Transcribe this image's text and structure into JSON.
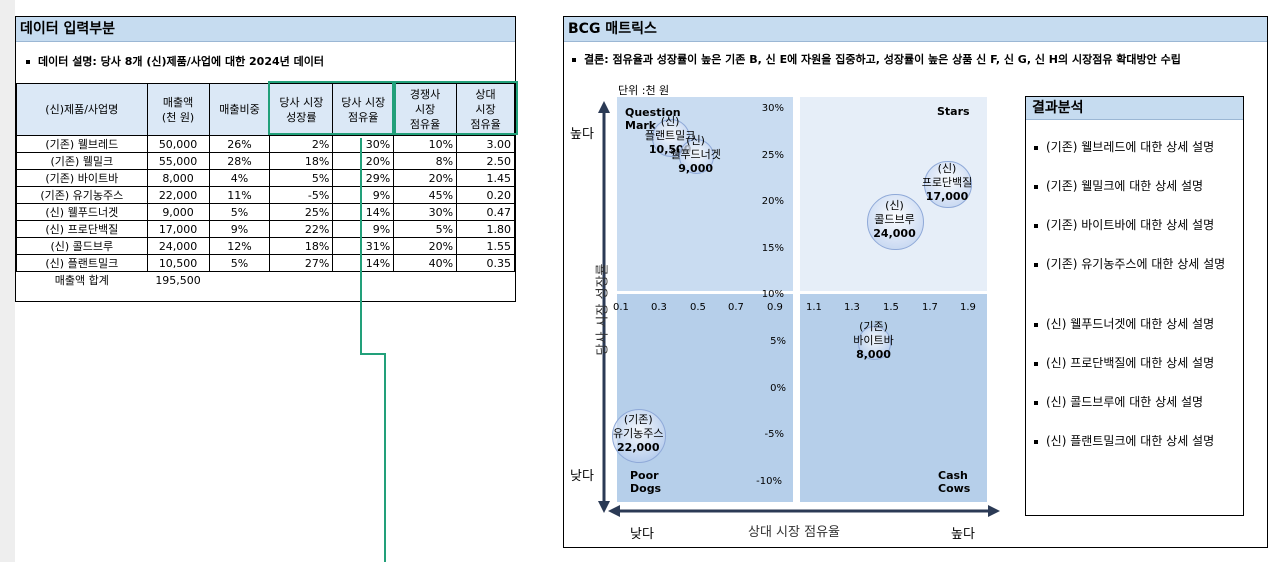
{
  "left_panel": {
    "title": "데이터 입력부분",
    "description": "데이터 설명: 당사 8개 (신)제품/사업에 대한 2024년 데이터",
    "headers": [
      "(신)제품/사업명",
      "매출액\n(천 원)",
      "매출비중",
      "당사 시장\n성장률",
      "당사 시장\n점유율",
      "경쟁사\n시장\n점유율",
      "상대\n시장\n점유율"
    ],
    "rows": [
      [
        "(기존) 웰브레드",
        "50,000",
        "26%",
        "2%",
        "30%",
        "10%",
        "3.00"
      ],
      [
        "(기존) 웰밀크",
        "55,000",
        "28%",
        "18%",
        "20%",
        "8%",
        "2.50"
      ],
      [
        "(기존) 바이트바",
        "8,000",
        "4%",
        "5%",
        "29%",
        "20%",
        "1.45"
      ],
      [
        "(기존) 유기농주스",
        "22,000",
        "11%",
        "-5%",
        "9%",
        "45%",
        "0.20"
      ],
      [
        "(신) 웰푸드너겟",
        "9,000",
        "5%",
        "25%",
        "14%",
        "30%",
        "0.47"
      ],
      [
        "(신) 프로단백질",
        "17,000",
        "9%",
        "22%",
        "9%",
        "5%",
        "1.80"
      ],
      [
        "(신) 콜드브루",
        "24,000",
        "12%",
        "18%",
        "31%",
        "20%",
        "1.55"
      ],
      [
        "(신) 플랜트밀크",
        "10,500",
        "5%",
        "27%",
        "14%",
        "40%",
        "0.35"
      ]
    ],
    "total_label": "매출액 합계",
    "total_value": "195,500"
  },
  "right_panel": {
    "title": "BCG 매트릭스",
    "conclusion": "결론: 점유율과 성장률이 높은 기존 B, 신 E에 자원을 집중하고, 성장률이 높은 상품 신 F, 신 G, 신 H의 시장점유 확대방안 수립",
    "unit": "단위 :천 원",
    "quadrants": {
      "question_mark": "Question\nMark",
      "stars": "Stars",
      "poor_dogs": "Poor\nDogs",
      "cash_cows": "Cash\nCows"
    },
    "y_axis": {
      "label": "당사 시장 성장률",
      "high": "높다",
      "low": "낮다"
    },
    "x_axis": {
      "label": "상대 시장 점유율",
      "low": "낮다",
      "high": "높다"
    },
    "result": {
      "title": "결과분석",
      "items": [
        "(기존) 웰브레드에 대한 상세 설명",
        "(기존) 웰밀크에 대한 상세 설명",
        "(기존) 바이트바에 대한 상세 설명",
        "(기존) 유기농주스에 대한 상세 설명",
        "(신) 웰푸드너겟에 대한 상세 설명",
        "(신) 프로단백질에 대한 상세 설명",
        "(신) 콜드브루에 대한 상세 설명",
        "(신) 플랜트밀크에 대한 상세 설명"
      ]
    }
  },
  "chart_data": {
    "type": "scatter",
    "x_ticks": [
      "0.1",
      "0.3",
      "0.5",
      "0.7",
      "0.9",
      "1.1",
      "1.3",
      "1.5",
      "1.7",
      "1.9"
    ],
    "y_ticks": [
      "30%",
      "25%",
      "20%",
      "15%",
      "10%",
      "5%",
      "0%",
      "-5%",
      "-10%"
    ],
    "points": [
      {
        "line1": "(신)",
        "line2": "플랜트밀크",
        "value": "10,500",
        "x": 0.35,
        "y": 27,
        "size": 10500
      },
      {
        "line1": "(신)",
        "line2": "웰푸드너겟",
        "value": "9,000",
        "x": 0.47,
        "y": 25,
        "size": 9000
      },
      {
        "line1": "(신)",
        "line2": "프로단백질",
        "value": "17,000",
        "x": 1.8,
        "y": 22,
        "size": 17000
      },
      {
        "line1": "(신)",
        "line2": "콜드브루",
        "value": "24,000",
        "x": 1.55,
        "y": 18,
        "size": 24000
      },
      {
        "line1": "(기존)",
        "line2": "바이트바",
        "value": "8,000",
        "x": 1.45,
        "y": 5,
        "size": 8000
      },
      {
        "line1": "(기존)",
        "line2": "유기농주스",
        "value": "22,000",
        "x": 0.2,
        "y": -5,
        "size": 22000
      }
    ],
    "colors": {
      "quadrant_dark": "#b6cfea",
      "quadrant_mid": "#cfe0f3",
      "quadrant_light": "#e6eef8",
      "bubble": "#a9c1ea"
    }
  }
}
